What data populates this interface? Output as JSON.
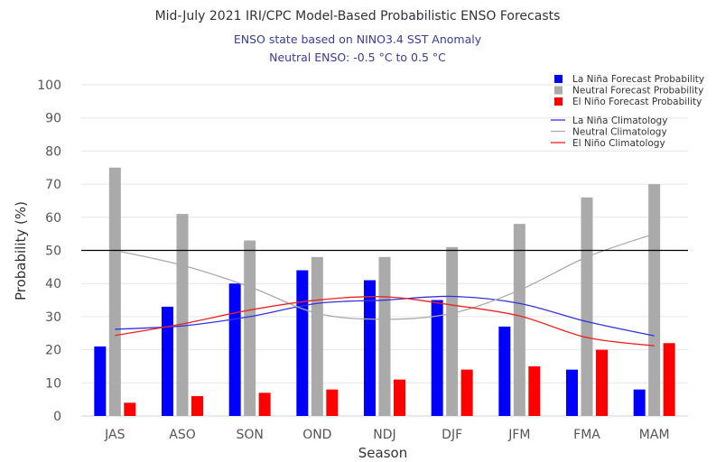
{
  "chart_data": {
    "type": "bar",
    "title": "Mid-July 2021 IRI/CPC Model-Based Probabilistic ENSO Forecasts",
    "subtitle_lines": [
      "ENSO state based on NINO3.4 SST Anomaly",
      "Neutral ENSO: -0.5 °C to 0.5 °C"
    ],
    "xlabel": "Season",
    "ylabel": "Probability (%)",
    "ylim": [
      0,
      100
    ],
    "yticks": [
      0,
      10,
      20,
      30,
      40,
      50,
      60,
      70,
      80,
      90,
      100
    ],
    "reference_line": 50,
    "categories": [
      "JAS",
      "ASO",
      "SON",
      "OND",
      "NDJ",
      "DJF",
      "JFM",
      "FMA",
      "MAM"
    ],
    "series": [
      {
        "name": "La Niña Forecast Probability",
        "color": "#0000ff",
        "values": [
          21,
          33,
          40,
          44,
          41,
          35,
          27,
          14,
          8
        ]
      },
      {
        "name": "Neutral Forecast Probability",
        "color": "#aaaaaa",
        "values": [
          75,
          61,
          53,
          48,
          48,
          51,
          58,
          66,
          70
        ]
      },
      {
        "name": "El Niño Forecast Probability",
        "color": "#ff0000",
        "values": [
          4,
          6,
          7,
          8,
          11,
          14,
          15,
          20,
          22
        ]
      }
    ],
    "climatology": [
      {
        "name": "La Niña Climatology",
        "color": "#3333dd",
        "values": [
          26.2,
          27.2,
          30,
          34,
          35,
          36.1,
          34,
          28.5,
          24.2
        ]
      },
      {
        "name": "Neutral Climatology",
        "color": "#aaaaaa",
        "values": [
          50,
          45.5,
          39,
          31,
          29.2,
          31,
          38,
          48,
          55
        ]
      },
      {
        "name": "El Niño Climatology",
        "color": "#ee2222",
        "values": [
          24.3,
          27.8,
          32,
          35,
          36,
          33.5,
          30.2,
          23.7,
          21.2
        ]
      }
    ],
    "legend_position": "top-right",
    "grid": true
  }
}
